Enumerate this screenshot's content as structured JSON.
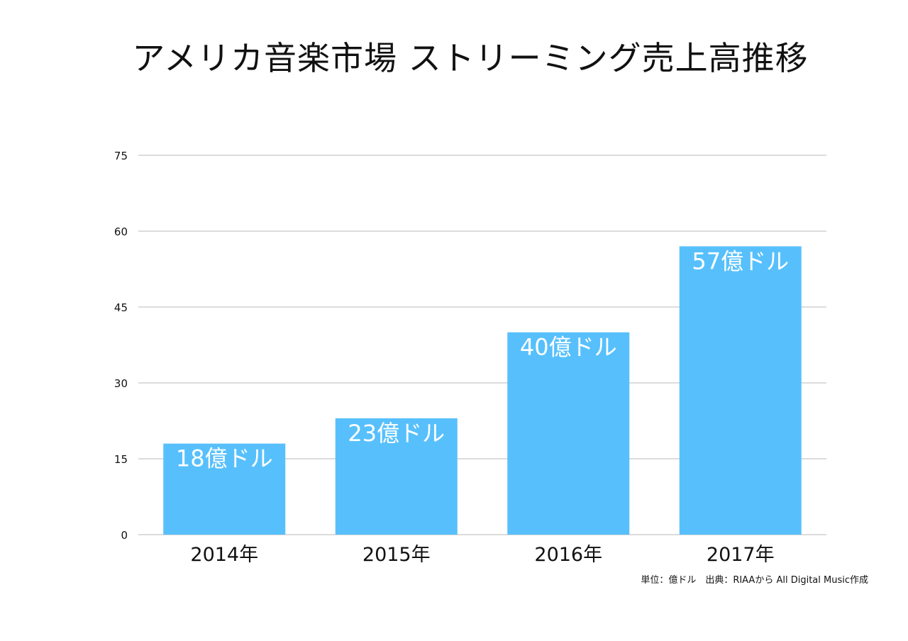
{
  "chart_data": {
    "type": "bar",
    "title": "アメリカ音楽市場 ストリーミング売上高推移",
    "categories": [
      "2014年",
      "2015年",
      "2016年",
      "2017年"
    ],
    "values": [
      18,
      23,
      40,
      57
    ],
    "data_labels": [
      "18億ドル",
      "23億ドル",
      "40億ドル",
      "57億ドル"
    ],
    "y_ticks": [
      "0",
      "15",
      "30",
      "45",
      "60",
      "75"
    ],
    "ylim": [
      0,
      75
    ],
    "grid": true,
    "bar_color": "#57c0fc",
    "grid_color": "#c8c8c8",
    "data_label_color": "#ffffff",
    "source_note": "単位：億ドル　出典：RIAAから All Digital Music作成"
  }
}
